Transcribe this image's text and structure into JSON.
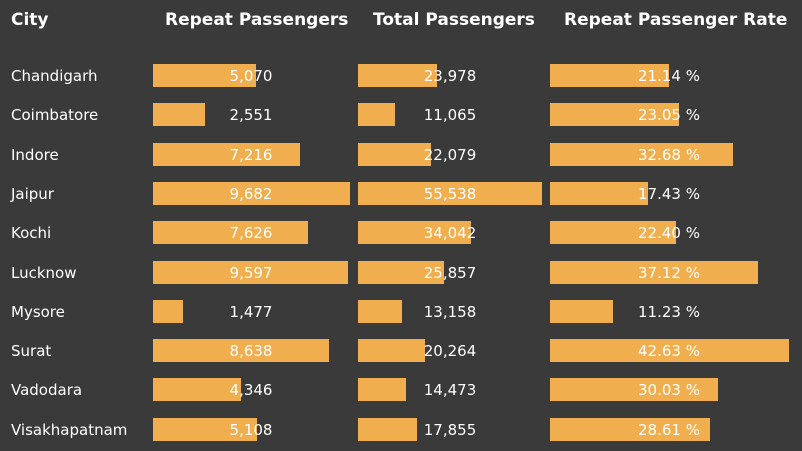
{
  "headers": {
    "city": "City",
    "repeat": "Repeat Passengers",
    "total": "Total Passengers",
    "rate": "Repeat Passenger Rate"
  },
  "chart_data": {
    "type": "table",
    "columns": [
      "City",
      "Repeat Passengers",
      "Total Passengers",
      "Repeat Passenger Rate"
    ],
    "rows": [
      {
        "city": "Chandigarh",
        "repeat": 5070,
        "repeat_label": "5,070",
        "total": 23978,
        "total_label": "23,978",
        "rate": 21.14,
        "rate_label": "21.14 %"
      },
      {
        "city": "Coimbatore",
        "repeat": 2551,
        "repeat_label": "2,551",
        "total": 11065,
        "total_label": "11,065",
        "rate": 23.05,
        "rate_label": "23.05 %"
      },
      {
        "city": "Indore",
        "repeat": 7216,
        "repeat_label": "7,216",
        "total": 22079,
        "total_label": "22,079",
        "rate": 32.68,
        "rate_label": "32.68 %"
      },
      {
        "city": "Jaipur",
        "repeat": 9682,
        "repeat_label": "9,682",
        "total": 55538,
        "total_label": "55,538",
        "rate": 17.43,
        "rate_label": "17.43 %"
      },
      {
        "city": "Kochi",
        "repeat": 7626,
        "repeat_label": "7,626",
        "total": 34042,
        "total_label": "34,042",
        "rate": 22.4,
        "rate_label": "22.40 %"
      },
      {
        "city": "Lucknow",
        "repeat": 9597,
        "repeat_label": "9,597",
        "total": 25857,
        "total_label": "25,857",
        "rate": 37.12,
        "rate_label": "37.12 %"
      },
      {
        "city": "Mysore",
        "repeat": 1477,
        "repeat_label": "1,477",
        "total": 13158,
        "total_label": "13,158",
        "rate": 11.23,
        "rate_label": "11.23 %"
      },
      {
        "city": "Surat",
        "repeat": 8638,
        "repeat_label": "8,638",
        "total": 20264,
        "total_label": "20,264",
        "rate": 42.63,
        "rate_label": "42.63 %"
      },
      {
        "city": "Vadodara",
        "repeat": 4346,
        "repeat_label": "4,346",
        "total": 14473,
        "total_label": "14,473",
        "rate": 30.03,
        "rate_label": "30.03 %"
      },
      {
        "city": "Visakhapatnam",
        "repeat": 5108,
        "repeat_label": "5,108",
        "total": 17855,
        "total_label": "17,855",
        "rate": 28.61,
        "rate_label": "28.61 %"
      }
    ],
    "bar_color": "#f0ae4f",
    "background": "#3a3a3a"
  }
}
